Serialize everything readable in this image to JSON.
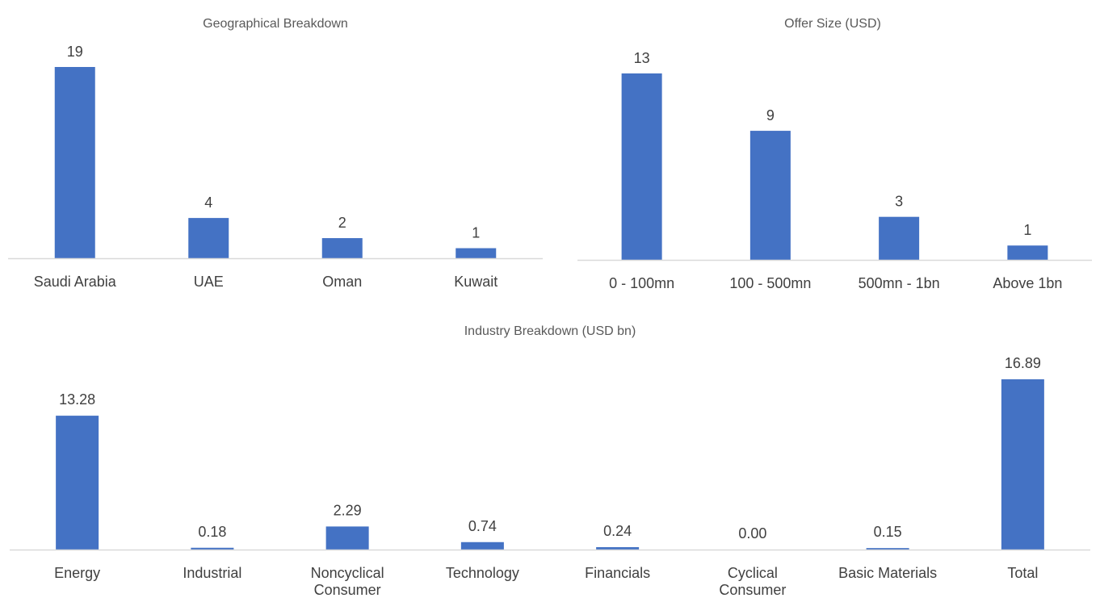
{
  "chart_data": [
    {
      "type": "bar",
      "title": "Geographical Breakdown",
      "categories": [
        "Saudi Arabia",
        "UAE",
        "Oman",
        "Kuwait"
      ],
      "values": [
        19,
        4,
        2,
        1
      ],
      "data_labels": [
        "19",
        "4",
        "2",
        "1"
      ],
      "ylim": [
        0,
        19
      ],
      "grid": false,
      "legend": "none",
      "bar_color": "#4472C4",
      "axis_color": "#D9D9D9"
    },
    {
      "type": "bar",
      "title": "Offer Size (USD)",
      "categories": [
        "0 - 100mn",
        "100 - 500mn",
        "500mn - 1bn",
        "Above 1bn"
      ],
      "values": [
        13,
        9,
        3,
        1
      ],
      "data_labels": [
        "13",
        "9",
        "3",
        "1"
      ],
      "ylim": [
        0,
        13
      ],
      "grid": false,
      "legend": "none",
      "bar_color": "#4472C4",
      "axis_color": "#D9D9D9"
    },
    {
      "type": "bar",
      "title": "Industry Breakdown (USD bn)",
      "categories": [
        "Energy",
        "Industrial",
        "Noncyclical Consumer",
        "Technology",
        "Financials",
        "Cyclical Consumer",
        "Basic Materials",
        "Total"
      ],
      "category_lines": [
        [
          "Energy"
        ],
        [
          "Industrial"
        ],
        [
          "Noncyclical",
          "Consumer"
        ],
        [
          "Technology"
        ],
        [
          "Financials"
        ],
        [
          "Cyclical",
          "Consumer"
        ],
        [
          "Basic Materials"
        ],
        [
          "Total"
        ]
      ],
      "values": [
        13.28,
        0.18,
        2.29,
        0.74,
        0.24,
        0.0,
        0.15,
        16.89
      ],
      "data_labels": [
        "13.28",
        "0.18",
        "2.29",
        "0.74",
        "0.24",
        "0.00",
        "0.15",
        "16.89"
      ],
      "ylim": [
        0,
        16.89
      ],
      "grid": false,
      "legend": "none",
      "bar_color": "#4472C4",
      "axis_color": "#D9D9D9"
    }
  ]
}
